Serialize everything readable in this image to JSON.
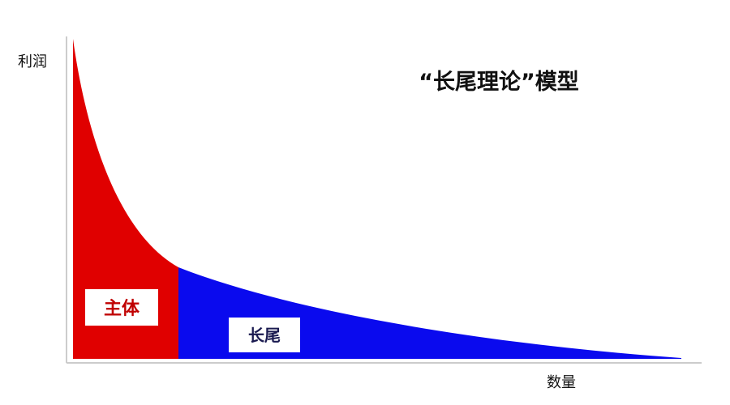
{
  "title": "“长尾理论”模型",
  "y_axis_label": "利润",
  "x_axis_label": "数量",
  "regions": [
    {
      "label": "主体"
    },
    {
      "label": "长尾"
    }
  ]
}
